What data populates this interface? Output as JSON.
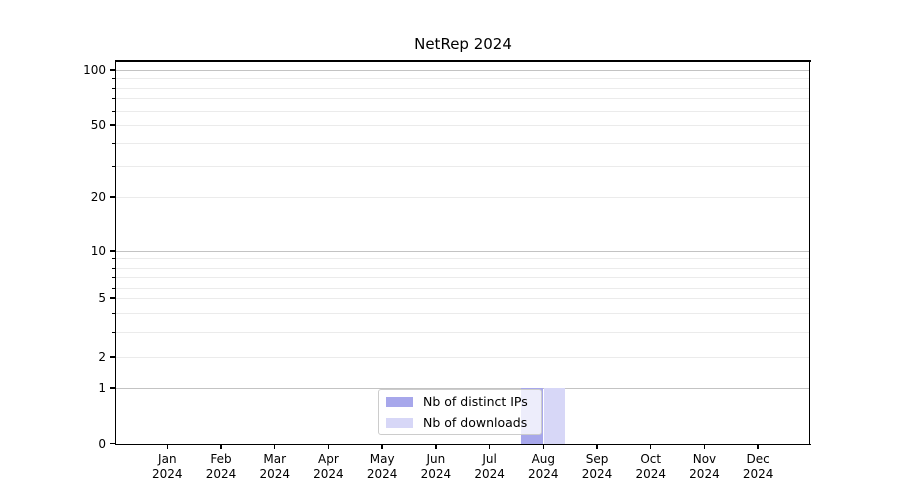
{
  "title": "NetRep 2024",
  "y_axis": {
    "tick_labels": [
      "100",
      "50",
      "20",
      "10",
      "5",
      "2",
      "1",
      "0"
    ]
  },
  "x_axis": {
    "months": [
      {
        "month": "Jan",
        "year": "2024"
      },
      {
        "month": "Feb",
        "year": "2024"
      },
      {
        "month": "Mar",
        "year": "2024"
      },
      {
        "month": "Apr",
        "year": "2024"
      },
      {
        "month": "May",
        "year": "2024"
      },
      {
        "month": "Jun",
        "year": "2024"
      },
      {
        "month": "Jul",
        "year": "2024"
      },
      {
        "month": "Aug",
        "year": "2024"
      },
      {
        "month": "Sep",
        "year": "2024"
      },
      {
        "month": "Oct",
        "year": "2024"
      },
      {
        "month": "Nov",
        "year": "2024"
      },
      {
        "month": "Dec",
        "year": "2024"
      }
    ]
  },
  "legend": {
    "items": [
      {
        "label": "Nb of distinct IPs",
        "color": "#a7a7eb"
      },
      {
        "label": "Nb of downloads",
        "color": "#d7d7f7"
      }
    ]
  },
  "colors": {
    "bar_distinct_ips": "#a7a7eb",
    "bar_downloads": "#d7d7f7",
    "grid_major": "#c3c3c3",
    "grid_minor": "#ebebeb",
    "spine": "#000000",
    "legend_border": "#cccccc"
  },
  "chart_data": {
    "type": "bar",
    "title": "NetRep 2024",
    "categories": [
      "Jan 2024",
      "Feb 2024",
      "Mar 2024",
      "Apr 2024",
      "May 2024",
      "Jun 2024",
      "Jul 2024",
      "Aug 2024",
      "Sep 2024",
      "Oct 2024",
      "Nov 2024",
      "Dec 2024"
    ],
    "series": [
      {
        "name": "Nb of distinct IPs",
        "color": "#a7a7eb",
        "values": [
          0,
          0,
          0,
          0,
          0,
          0,
          0,
          1,
          0,
          0,
          0,
          0
        ]
      },
      {
        "name": "Nb of downloads",
        "color": "#d7d7f7",
        "values": [
          0,
          0,
          0,
          0,
          0,
          0,
          0,
          1,
          0,
          0,
          0,
          0
        ]
      }
    ],
    "yscale": "symlog",
    "yticks": [
      0,
      1,
      2,
      5,
      10,
      20,
      50,
      100
    ],
    "ylim": [
      0,
      110
    ],
    "xlabel": "",
    "ylabel": "",
    "grid": "horizontal major and minor gridlines",
    "legend_position": "lower center inside plot"
  }
}
